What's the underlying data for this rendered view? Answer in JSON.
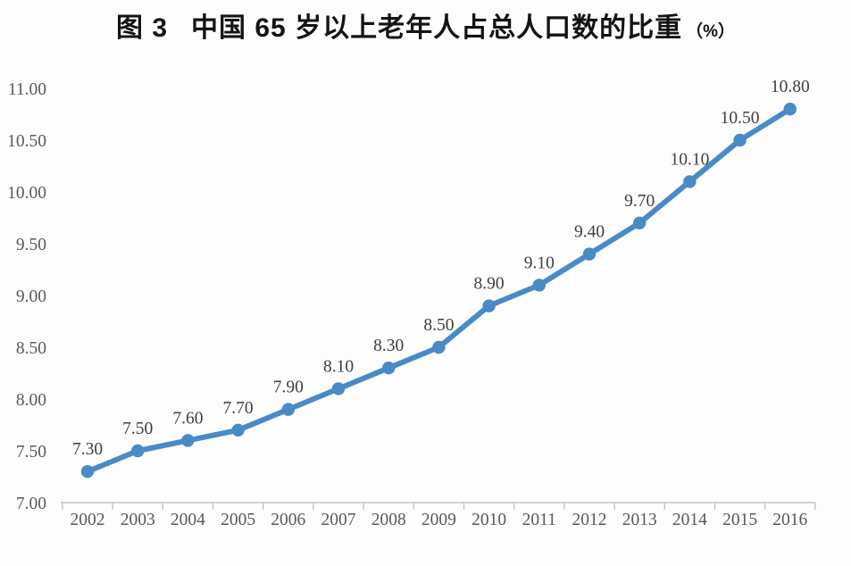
{
  "title": {
    "figure_label": "图 3",
    "main": "中国 65 岁以上老年人占总人口数的比重",
    "unit": "（%）"
  },
  "chart_data": {
    "type": "line",
    "title": "图 3 中国 65 岁以上老年人占总人口数的比重（%）",
    "categories": [
      "2002",
      "2003",
      "2004",
      "2005",
      "2006",
      "2007",
      "2008",
      "2009",
      "2010",
      "2011",
      "2012",
      "2013",
      "2014",
      "2015",
      "2016"
    ],
    "values": [
      7.3,
      7.5,
      7.6,
      7.7,
      7.9,
      8.1,
      8.3,
      8.5,
      8.9,
      9.1,
      9.4,
      9.7,
      10.1,
      10.5,
      10.8
    ],
    "data_labels": [
      "7.30",
      "7.50",
      "7.60",
      "7.70",
      "7.90",
      "8.10",
      "8.30",
      "8.50",
      "8.90",
      "9.10",
      "9.40",
      "9.70",
      "10.10",
      "10.50",
      "10.80"
    ],
    "yticks": [
      "11.00",
      "10.50",
      "10.00",
      "9.50",
      "9.00",
      "8.50",
      "8.00",
      "7.50",
      "7.00"
    ],
    "ytick_values": [
      11.0,
      10.5,
      10.0,
      9.5,
      9.0,
      8.5,
      8.0,
      7.5,
      7.0
    ],
    "ylim": [
      7.0,
      11.0
    ],
    "ytick_step": 0.5,
    "xlabel": "",
    "ylabel": "",
    "grid": false,
    "legend": "none",
    "colors": {
      "line": "#4a8ac6",
      "marker": "#4a8ac6",
      "axis": "#c3c3c3",
      "tick_label": "#595959",
      "data_label": "#3f3f3f",
      "title": "#141414",
      "background": "#fdfdfd"
    }
  }
}
